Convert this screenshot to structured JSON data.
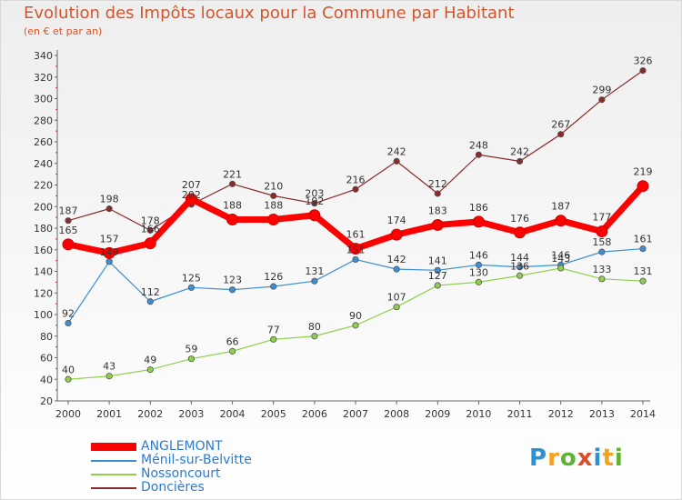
{
  "header": {
    "title": "Evolution des Impôts locaux pour la Commune par Habitant",
    "subtitle": "(en € et par an)"
  },
  "logo": {
    "text": "Proxiti"
  },
  "chart_data": {
    "type": "line",
    "title": "Evolution des Impôts locaux pour la Commune par Habitant",
    "subtitle": "(en € et par an)",
    "x": [
      "2000",
      "2001",
      "2002",
      "2003",
      "2004",
      "2005",
      "2006",
      "2007",
      "2008",
      "2009",
      "2010",
      "2011",
      "2012",
      "2013",
      "2014"
    ],
    "ylim": [
      20,
      340
    ],
    "yticks": [
      20,
      40,
      60,
      80,
      100,
      120,
      140,
      160,
      180,
      200,
      220,
      240,
      260,
      280,
      300,
      320,
      340
    ],
    "grid": false,
    "legend_position": "bottom-left",
    "series": [
      {
        "name": "ANGLEMONT",
        "color": "#ff0000",
        "emphasis": true,
        "values": [
          165,
          157,
          166,
          207,
          188,
          188,
          192,
          161,
          174,
          183,
          186,
          176,
          187,
          177,
          219
        ],
        "labels": [
          "165",
          "157",
          "166",
          "207",
          "188",
          "188",
          "192",
          "161",
          "174",
          "183",
          "186",
          "176",
          "187",
          "177",
          "219"
        ]
      },
      {
        "name": "Ménil-sur-Belvitte",
        "color": "#3b8fd4",
        "emphasis": false,
        "values": [
          92,
          149,
          112,
          125,
          123,
          126,
          131,
          151,
          142,
          141,
          146,
          144,
          146,
          158,
          161
        ],
        "labels": [
          "92",
          "149",
          "112",
          "125",
          "123",
          "126",
          "131",
          "151",
          "142",
          "141",
          "146",
          "144",
          "146",
          "158",
          "161"
        ]
      },
      {
        "name": "Nossoncourt",
        "color": "#8ed04a",
        "emphasis": false,
        "values": [
          40,
          43,
          49,
          59,
          66,
          77,
          80,
          90,
          107,
          127,
          130,
          136,
          143,
          133,
          131
        ],
        "labels": [
          "40",
          "43",
          "49",
          "59",
          "66",
          "77",
          "80",
          "90",
          "107",
          "127",
          "130",
          "136",
          "143",
          "133",
          "131"
        ]
      },
      {
        "name": "Doncières",
        "color": "#8b2a2a",
        "emphasis": false,
        "values": [
          187,
          198,
          178,
          202,
          221,
          210,
          203,
          216,
          242,
          212,
          248,
          242,
          267,
          299,
          326
        ],
        "labels": [
          "187",
          "198",
          "178",
          "202",
          "221",
          "210",
          "203",
          "216",
          "242",
          "212",
          "248",
          "242",
          "267",
          "299",
          "326"
        ]
      }
    ]
  }
}
